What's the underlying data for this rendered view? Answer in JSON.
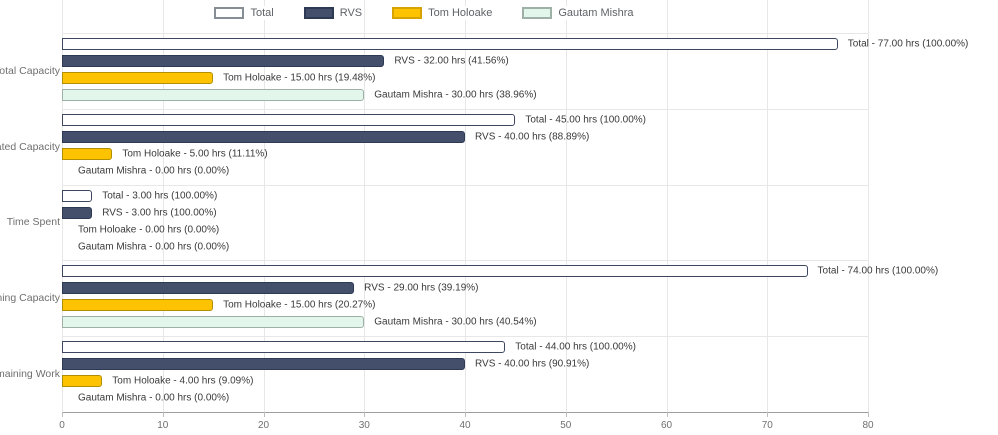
{
  "chart_data": {
    "type": "bar",
    "orientation": "horizontal",
    "title": "",
    "xlabel": "",
    "ylabel": "",
    "unit": "hrs",
    "grid": true,
    "legend_position": "top-center",
    "xlim": [
      0,
      80
    ],
    "x_ticks": [
      0,
      10,
      20,
      30,
      40,
      50,
      60,
      70,
      80
    ],
    "categories": [
      "Total Capacity",
      "Allocated Capacity",
      "Time Spent",
      "Remaining Capacity",
      "Remaining Work"
    ],
    "series": [
      {
        "name": "Total",
        "fill": "#ffffff",
        "border": "#3d4860",
        "swatch_border": "#878d94",
        "values": [
          77,
          45,
          3,
          74,
          44
        ],
        "bar_labels": [
          "Total - 77.00 hrs (100.00%)",
          "Total - 45.00 hrs (100.00%)",
          "Total - 3.00 hrs (100.00%)",
          "Total - 74.00 hrs (100.00%)",
          "Total - 44.00 hrs (100.00%)"
        ]
      },
      {
        "name": "RVS",
        "fill": "#44506b",
        "border": "#2e3a54",
        "swatch_border": "#2e3a54",
        "values": [
          32,
          40,
          3,
          29,
          40
        ],
        "bar_labels": [
          "RVS - 32.00 hrs (41.56%)",
          "RVS - 40.00 hrs (88.89%)",
          "RVS - 3.00 hrs (100.00%)",
          "RVS - 29.00 hrs (39.19%)",
          "RVS - 40.00 hrs (90.91%)"
        ]
      },
      {
        "name": "Tom Holoake",
        "fill": "#fdc300",
        "border": "#b18e04",
        "swatch_border": "#d6a303",
        "values": [
          15,
          5,
          0,
          15,
          4
        ],
        "bar_labels": [
          "Tom Holoake - 15.00 hrs (19.48%)",
          "Tom Holoake - 5.00 hrs (11.11%)",
          "Tom Holoake - 0.00 hrs (0.00%)",
          "Tom Holoake - 15.00 hrs (20.27%)",
          "Tom Holoake - 4.00 hrs (9.09%)"
        ]
      },
      {
        "name": "Gautam Mishra",
        "fill": "#e3f6ec",
        "border": "#9fb0a7",
        "swatch_border": "#9fb0a7",
        "values": [
          30,
          0,
          0,
          30,
          0
        ],
        "bar_labels": [
          "Gautam Mishra - 30.00 hrs (38.96%)",
          "Gautam Mishra - 0.00 hrs (0.00%)",
          "Gautam Mishra - 0.00 hrs (0.00%)",
          "Gautam Mishra - 30.00 hrs (40.54%)",
          "Gautam Mishra - 0.00 hrs (0.00%)"
        ]
      }
    ]
  },
  "colors": {
    "background": "#ffffff",
    "grid_line": "#e7e7e7",
    "axis_line": "#9e9e9e",
    "tick_mark": "#bdbdbd",
    "tick_label": "#6f6f6f",
    "category_label": "#6f6f6f",
    "bar_label": "#3a3a3a",
    "legend_text": "#5f6368"
  }
}
